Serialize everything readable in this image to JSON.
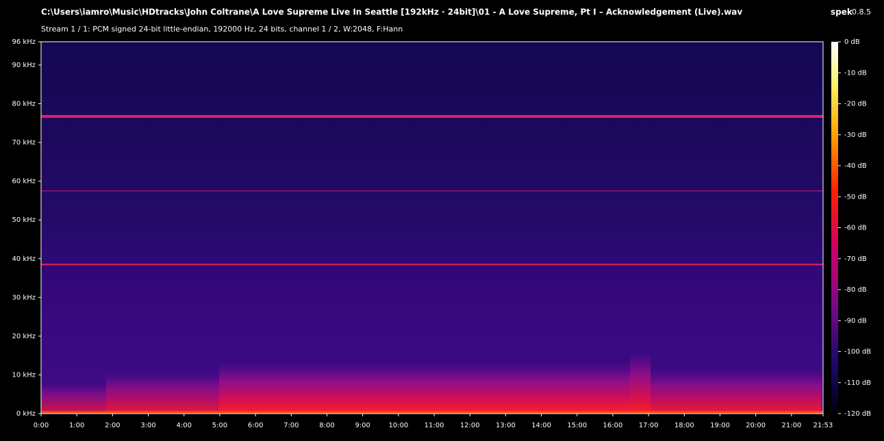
{
  "header": {
    "file_path": "C:\\Users\\iamro\\Music\\HDtracks\\John Coltrane\\A Love Supreme  Live In Seattle [192kHz · 24bit]\\01 - A Love Supreme, Pt  I – Acknowledgement (Live).wav",
    "app_name": "spek",
    "app_version": "0.8.5",
    "stream_info": "Stream 1 / 1: PCM signed 24-bit little-endian, 192000 Hz, 24 bits, channel 1 / 2, W:2048, F:Hann"
  },
  "frequency_axis": {
    "ticks": [
      "0 kHz",
      "10 kHz",
      "20 kHz",
      "30 kHz",
      "40 kHz",
      "50 kHz",
      "60 kHz",
      "70 kHz",
      "80 kHz",
      "90 kHz",
      "96 kHz"
    ]
  },
  "time_axis": {
    "ticks": [
      "0:00",
      "1:00",
      "2:00",
      "3:00",
      "4:00",
      "5:00",
      "6:00",
      "7:00",
      "8:00",
      "9:00",
      "10:00",
      "11:00",
      "12:00",
      "13:00",
      "14:00",
      "15:00",
      "16:00",
      "17:00",
      "18:00",
      "19:00",
      "20:00",
      "21:00",
      "21:53"
    ]
  },
  "color_scale": {
    "ticks": [
      "0 dB",
      "-10 dB",
      "-20 dB",
      "-30 dB",
      "-40 dB",
      "-50 dB",
      "-60 dB",
      "-70 dB",
      "-80 dB",
      "-90 dB",
      "-100 dB",
      "-110 dB",
      "-120 dB"
    ]
  }
}
